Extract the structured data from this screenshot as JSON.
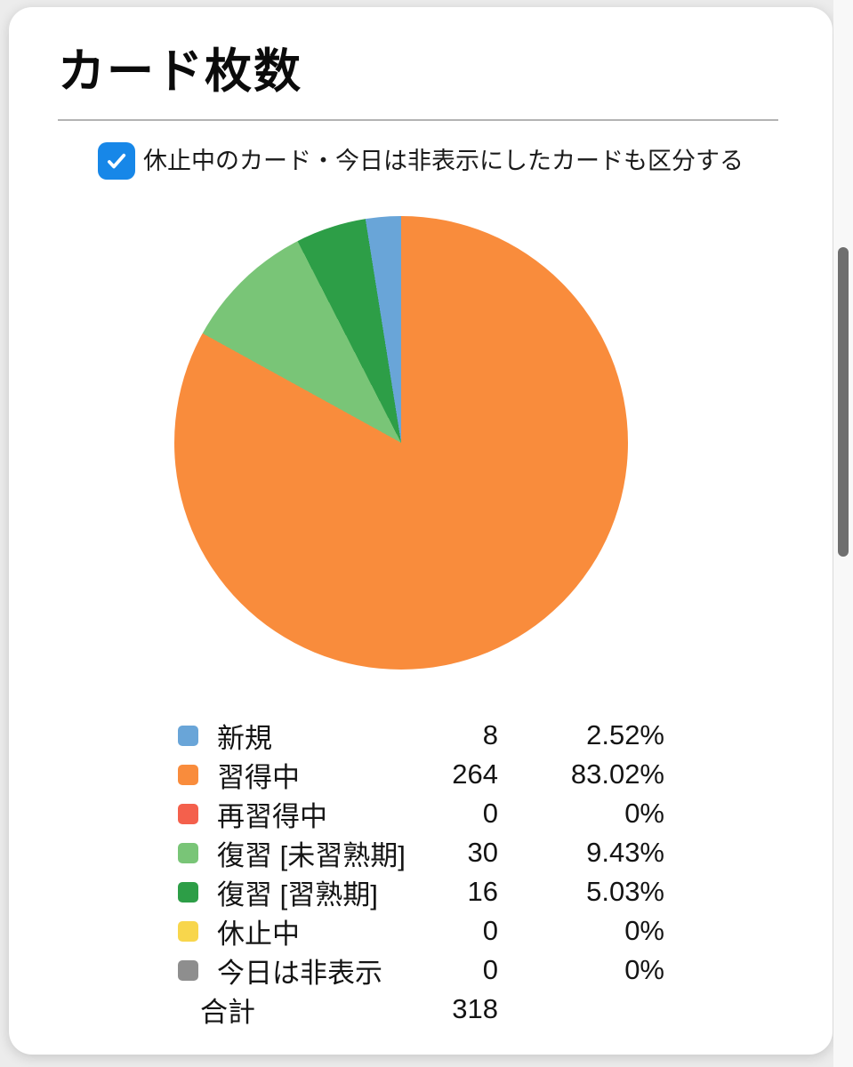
{
  "page": {
    "title": "カード枚数"
  },
  "checkbox": {
    "label": "休止中のカード・今日は非表示にしたカードも区分する",
    "checked": true,
    "color": "#1787e8"
  },
  "chart_data": {
    "type": "pie",
    "title": "カード枚数",
    "legend_position": "bottom",
    "categories": [
      "新規",
      "習得中",
      "再習得中",
      "復習 [未習熟期]",
      "復習 [習熟期]",
      "休止中",
      "今日は非表示"
    ],
    "values": [
      8,
      264,
      0,
      30,
      16,
      0,
      0
    ],
    "percentages": [
      "2.52%",
      "83.02%",
      "0%",
      "9.43%",
      "5.03%",
      "0%",
      "0%"
    ],
    "colors": [
      "#69a5d8",
      "#f98c3c",
      "#f4604c",
      "#79c577",
      "#2d9e47",
      "#f8d64c",
      "#8e8e8e"
    ],
    "slice_order": [
      1,
      2,
      3,
      4,
      5,
      6,
      0
    ],
    "start_angle_deg": 0,
    "total_label": "合計",
    "total_value": 318
  }
}
